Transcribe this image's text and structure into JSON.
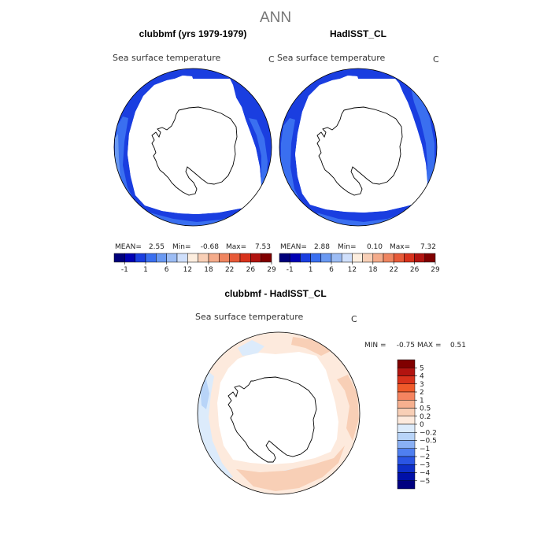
{
  "main_title": "ANN",
  "units_label": "C",
  "chart_data": [
    {
      "type": "map",
      "projection": "south-polar-stereographic",
      "title": "clubbmf (yrs 1979-1979)",
      "field_label": "Sea surface temperature",
      "units": "C",
      "stats": {
        "mean_label": "MEAN=",
        "mean": "2.55",
        "min_label": "Min=",
        "min": "-0.68",
        "max_label": "Max=",
        "max": "7.53"
      },
      "colorbar": {
        "orientation": "horizontal",
        "levels": [
          -1,
          1,
          6,
          12,
          18,
          22,
          26,
          29
        ],
        "tick_labels": [
          "-1",
          "1",
          "6",
          "12",
          "18",
          "22",
          "26",
          "29"
        ],
        "colors": [
          "#00007a",
          "#0000b4",
          "#1a3ee0",
          "#3a6ff0",
          "#6a99f2",
          "#9cbcf4",
          "#cfdffb",
          "#fdeedf",
          "#f8cfb6",
          "#f4ab8a",
          "#ef8560",
          "#e75a38",
          "#d8321c",
          "#b21410",
          "#800000"
        ]
      }
    },
    {
      "type": "map",
      "projection": "south-polar-stereographic",
      "title": "HadISST_CL",
      "field_label": "Sea surface temperature",
      "units": "C",
      "stats": {
        "mean_label": "MEAN=",
        "mean": "2.88",
        "min_label": "Min=",
        "min": "0.10",
        "max_label": "Max=",
        "max": "7.32"
      },
      "colorbar": {
        "orientation": "horizontal",
        "levels": [
          -1,
          1,
          6,
          12,
          18,
          22,
          26,
          29
        ],
        "tick_labels": [
          "-1",
          "1",
          "6",
          "12",
          "18",
          "22",
          "26",
          "29"
        ],
        "colors": [
          "#00007a",
          "#0000b4",
          "#1a3ee0",
          "#3a6ff0",
          "#6a99f2",
          "#9cbcf4",
          "#cfdffb",
          "#fdeedf",
          "#f8cfb6",
          "#f4ab8a",
          "#ef8560",
          "#e75a38",
          "#d8321c",
          "#b21410",
          "#800000"
        ]
      }
    },
    {
      "type": "map",
      "projection": "south-polar-stereographic",
      "title": "clubbmf - HadISST_CL",
      "field_label": "Sea surface temperature",
      "units": "C",
      "stats": {
        "min_label": "MIN =",
        "min": "-0.75",
        "max_label": "MAX =",
        "max": "0.51"
      },
      "colorbar": {
        "orientation": "vertical",
        "levels": [
          5,
          4,
          3,
          2,
          1,
          0.5,
          0.2,
          0,
          -0.2,
          -0.5,
          -1,
          -2,
          -3,
          -4,
          -5
        ],
        "tick_labels": [
          "5",
          "4",
          "3",
          "2",
          "1",
          "0.5",
          "0.2",
          "0",
          "−0.2",
          "−0.5",
          "−1",
          "−2",
          "−3",
          "−4",
          "−5"
        ],
        "colors": [
          "#800000",
          "#b21410",
          "#d8321c",
          "#ef5a2a",
          "#f58460",
          "#f6b08f",
          "#f8cfb6",
          "#fdeadd",
          "#dcebfb",
          "#b8d4f8",
          "#8ab0f4",
          "#4f7ff0",
          "#2a55e4",
          "#0e2fc8",
          "#0010a8",
          "#000080"
        ]
      }
    }
  ]
}
